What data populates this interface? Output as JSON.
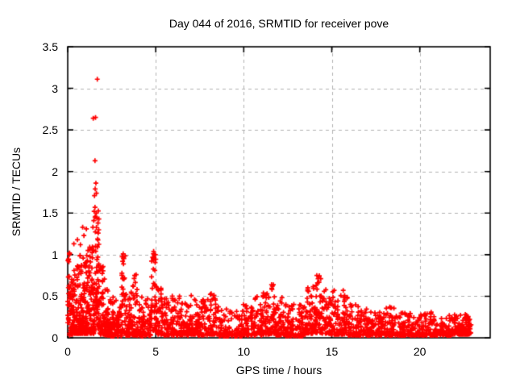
{
  "figure": {
    "background_color": "#ffffff",
    "border_color": "#000000",
    "text_color": "#000000"
  },
  "chart_data": {
    "type": "scatter",
    "title": "Day 044 of 2016, SRMTID for receiver pove",
    "xlabel": "GPS time / hours",
    "ylabel": "SRMTID / TECUs",
    "xlim": [
      0,
      24
    ],
    "ylim": [
      0,
      3.5
    ],
    "xticks": [
      0,
      5,
      10,
      15,
      20
    ],
    "xtick_labels": [
      "0",
      "5",
      "10",
      "15",
      "20"
    ],
    "yticks": [
      0,
      0.5,
      1,
      1.5,
      2,
      2.5,
      3,
      3.5
    ],
    "ytick_labels": [
      "0",
      "0.5",
      "1",
      "1.5",
      "2",
      "2.5",
      "3",
      "3.5"
    ],
    "legend": "none",
    "grid": {
      "visible": true,
      "style": "dashed",
      "color": "#b0b0b0",
      "dash": [
        4,
        4
      ]
    },
    "marker": {
      "shape": "plus",
      "color": "#ff0000",
      "size": 7
    },
    "x_data_range": [
      0.0,
      22.9
    ],
    "y_data_max": 3.11,
    "seed": 44,
    "outlier_points": [
      [
        1.68,
        3.11
      ],
      [
        1.45,
        2.64
      ],
      [
        1.58,
        2.65
      ],
      [
        1.55,
        2.13
      ],
      [
        1.6,
        1.86
      ],
      [
        1.56,
        1.79
      ],
      [
        1.63,
        1.74
      ],
      [
        1.52,
        1.71
      ],
      [
        1.55,
        1.57
      ],
      [
        1.5,
        1.52
      ],
      [
        1.62,
        1.5
      ],
      [
        1.58,
        1.46
      ],
      [
        1.66,
        1.44
      ],
      [
        1.48,
        1.41
      ],
      [
        1.72,
        1.38
      ],
      [
        0.85,
        1.33
      ],
      [
        1.43,
        1.33
      ],
      [
        1.06,
        1.31
      ],
      [
        0.92,
        1.23
      ],
      [
        0.55,
        1.18
      ],
      [
        0.72,
        1.12
      ],
      [
        0.35,
        1.13
      ],
      [
        1.25,
        1.09
      ],
      [
        1.15,
        1.05
      ],
      [
        0.1,
        1.02
      ],
      [
        3.15,
        1.01
      ],
      [
        3.18,
        0.96
      ],
      [
        3.12,
        0.92
      ],
      [
        4.88,
        1.04
      ],
      [
        4.92,
        1.0
      ],
      [
        4.85,
        0.96
      ],
      [
        11.58,
        0.64
      ],
      [
        14.15,
        0.75
      ],
      [
        14.22,
        0.71
      ],
      [
        15.65,
        0.57
      ],
      [
        18.35,
        0.36
      ],
      [
        3.8,
        0.75
      ],
      [
        6.35,
        0.5
      ],
      [
        8.15,
        0.53
      ]
    ],
    "density_bins": [
      [
        0.0,
        0.12,
        30,
        0.02,
        1.05,
        1.2
      ],
      [
        0.12,
        0.35,
        48,
        0.04,
        0.82,
        2.0
      ],
      [
        0.35,
        0.62,
        58,
        0.05,
        0.95,
        2.1
      ],
      [
        0.62,
        0.92,
        65,
        0.05,
        1.0,
        2.1
      ],
      [
        0.92,
        1.22,
        65,
        0.05,
        1.05,
        2.1
      ],
      [
        1.22,
        1.5,
        60,
        0.05,
        1.1,
        2.0
      ],
      [
        1.5,
        1.82,
        72,
        0.08,
        1.55,
        1.5
      ],
      [
        1.82,
        2.12,
        55,
        0.04,
        0.88,
        2.1
      ],
      [
        2.12,
        2.45,
        50,
        0.03,
        0.62,
        2.2
      ],
      [
        2.45,
        2.8,
        45,
        0.02,
        0.5,
        2.3
      ],
      [
        2.8,
        3.06,
        35,
        0.02,
        0.4,
        2.3
      ],
      [
        3.06,
        3.3,
        40,
        0.05,
        1.0,
        1.5
      ],
      [
        3.3,
        3.62,
        42,
        0.03,
        0.55,
        2.2
      ],
      [
        3.62,
        3.95,
        45,
        0.03,
        0.76,
        2.3
      ],
      [
        3.95,
        4.35,
        45,
        0.02,
        0.5,
        2.3
      ],
      [
        4.35,
        4.72,
        42,
        0.03,
        0.48,
        2.2
      ],
      [
        4.72,
        5.06,
        46,
        0.08,
        1.04,
        1.4
      ],
      [
        5.06,
        5.45,
        42,
        0.04,
        0.6,
        2.2
      ],
      [
        5.45,
        5.9,
        46,
        0.03,
        0.48,
        2.3
      ],
      [
        5.9,
        6.4,
        50,
        0.03,
        0.52,
        2.3
      ],
      [
        6.4,
        6.9,
        50,
        0.03,
        0.46,
        2.3
      ],
      [
        6.9,
        7.4,
        52,
        0.04,
        0.52,
        2.3
      ],
      [
        7.4,
        7.92,
        52,
        0.03,
        0.5,
        2.3
      ],
      [
        7.92,
        8.5,
        58,
        0.04,
        0.55,
        2.3
      ],
      [
        8.5,
        9.2,
        60,
        0.02,
        0.38,
        2.5
      ],
      [
        9.2,
        9.9,
        60,
        0.02,
        0.32,
        2.5
      ],
      [
        9.9,
        10.5,
        55,
        0.03,
        0.4,
        2.5
      ],
      [
        10.5,
        11.02,
        50,
        0.03,
        0.5,
        2.3
      ],
      [
        11.02,
        11.46,
        46,
        0.04,
        0.55,
        2.3
      ],
      [
        11.46,
        11.8,
        42,
        0.05,
        0.64,
        2.0
      ],
      [
        11.8,
        12.3,
        50,
        0.03,
        0.5,
        2.3
      ],
      [
        12.3,
        12.9,
        55,
        0.02,
        0.42,
        2.5
      ],
      [
        12.9,
        13.52,
        55,
        0.02,
        0.4,
        2.5
      ],
      [
        13.52,
        13.92,
        46,
        0.05,
        0.62,
        2.1
      ],
      [
        13.92,
        14.42,
        56,
        0.06,
        0.75,
        1.8
      ],
      [
        14.42,
        14.92,
        50,
        0.05,
        0.6,
        2.1
      ],
      [
        14.92,
        15.42,
        50,
        0.04,
        0.58,
        2.1
      ],
      [
        15.42,
        15.92,
        50,
        0.04,
        0.56,
        2.1
      ],
      [
        15.92,
        16.52,
        55,
        0.03,
        0.42,
        2.4
      ],
      [
        16.52,
        17.22,
        60,
        0.03,
        0.36,
        2.5
      ],
      [
        17.22,
        18.02,
        64,
        0.03,
        0.32,
        2.5
      ],
      [
        18.02,
        18.62,
        55,
        0.03,
        0.38,
        2.4
      ],
      [
        18.62,
        19.42,
        64,
        0.03,
        0.32,
        2.5
      ],
      [
        19.42,
        20.22,
        64,
        0.03,
        0.3,
        2.5
      ],
      [
        20.22,
        21.02,
        64,
        0.03,
        0.32,
        2.5
      ],
      [
        21.02,
        21.82,
        64,
        0.03,
        0.28,
        2.5
      ],
      [
        21.82,
        22.42,
        60,
        0.04,
        0.28,
        2.4
      ],
      [
        22.42,
        22.92,
        56,
        0.04,
        0.3,
        2.2
      ]
    ]
  }
}
